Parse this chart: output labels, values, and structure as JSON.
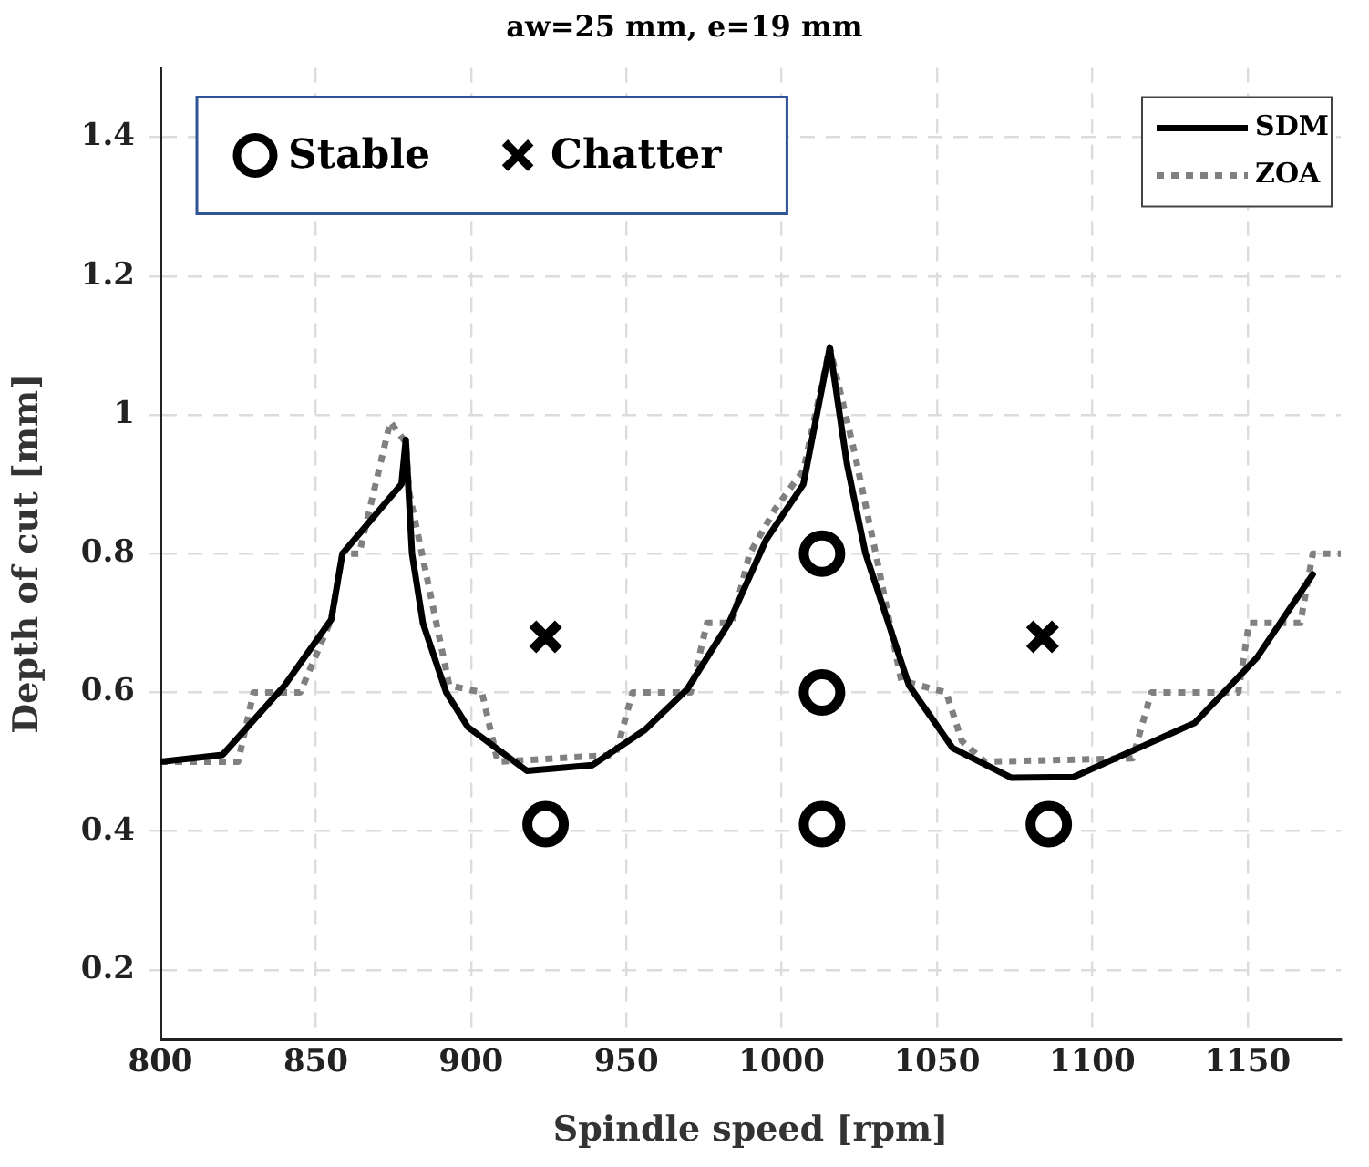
{
  "chart_data": {
    "type": "line",
    "title": "aw=25 mm, e=19 mm",
    "xlabel": "Spindle speed [rpm]",
    "ylabel": "Depth of cut [mm]",
    "xlim": [
      800,
      1180
    ],
    "xticks": [
      800,
      850,
      900,
      950,
      1000,
      1050,
      1100,
      1150
    ],
    "ylim": [
      0.1,
      1.5
    ],
    "yticks": [
      0.2,
      0.4,
      0.6,
      0.8,
      1,
      1.2,
      1.4
    ],
    "grid": true,
    "legend": "top right",
    "series": [
      {
        "name": "SDM",
        "color": "#000000",
        "line_style": "solid",
        "marker": "none",
        "x": [
          800,
          820,
          840,
          855,
          858.6,
          877.6,
          879,
          881,
          884.5,
          892,
          899,
          918,
          939,
          956,
          969.5,
          983,
          995,
          1007,
          1015.5,
          1021,
          1027,
          1041,
          1055,
          1074,
          1094,
          1133,
          1153,
          1171
        ],
        "values": [
          0.5,
          0.51,
          0.61,
          0.705,
          0.8,
          0.9,
          0.964,
          0.8,
          0.7,
          0.6,
          0.55,
          0.487,
          0.495,
          0.546,
          0.604,
          0.7,
          0.82,
          0.9,
          1.097,
          0.93,
          0.8,
          0.61,
          0.52,
          0.477,
          0.478,
          0.556,
          0.65,
          0.77
        ]
      },
      {
        "name": "ZOA",
        "color": "#808080",
        "line_style": "dotted",
        "marker": "none",
        "x": [
          800,
          825,
          830,
          845,
          855,
          858.6,
          864,
          874,
          879,
          880,
          885.6,
          893,
          903.5,
          908.6,
          946.5,
          952,
          970.7,
          976,
          984,
          989.7,
          998,
          1007,
          1015.5,
          1023.5,
          1031,
          1038.5,
          1053,
          1058,
          1065.5,
          1113,
          1119,
          1147,
          1150.5,
          1167,
          1171,
          1180
        ],
        "values": [
          0.5,
          0.5,
          0.6,
          0.6,
          0.705,
          0.8,
          0.8,
          0.99,
          0.96,
          0.89,
          0.77,
          0.61,
          0.6,
          0.5,
          0.51,
          0.6,
          0.6,
          0.7,
          0.7,
          0.8,
          0.865,
          0.92,
          1.097,
          0.945,
          0.785,
          0.617,
          0.6,
          0.53,
          0.5,
          0.505,
          0.6,
          0.6,
          0.7,
          0.7,
          0.8,
          0.8
        ]
      },
      {
        "name": "Stable",
        "type": "scatter",
        "color": "#000000",
        "marker": "circle",
        "x": [
          924,
          1013,
          1013,
          1013,
          1086
        ],
        "values": [
          0.41,
          0.41,
          0.6,
          0.8,
          0.41
        ]
      },
      {
        "name": "Chatter",
        "type": "scatter",
        "color": "#000000",
        "marker": "cross",
        "x": [
          924,
          1084
        ],
        "values": [
          0.68,
          0.68
        ]
      }
    ]
  }
}
